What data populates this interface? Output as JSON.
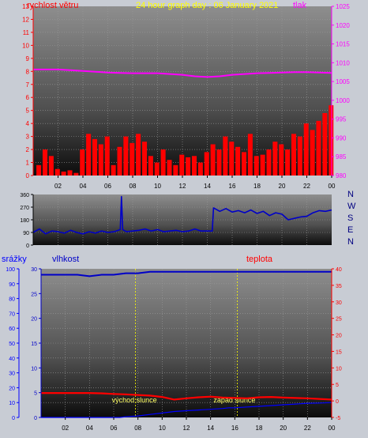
{
  "colors": {
    "background": "#c8ccd4",
    "wind_speed": "#ff0000",
    "pressure": "#ff00ff",
    "direction": "#0000c8",
    "humidity": "#0000c8",
    "temperature": "#ff0000",
    "rain": "#0000ff",
    "title": "#ffff00",
    "annotation": "#ffff66",
    "tick": "#000000"
  },
  "chart_data": [
    {
      "type": "bar",
      "title": "24 hour graph day : 06 January 2021",
      "x_ticks": [
        "02",
        "04",
        "06",
        "08",
        "10",
        "12",
        "14",
        "16",
        "18",
        "20",
        "22",
        "00"
      ],
      "xlim": [
        0,
        24
      ],
      "left_axis": {
        "label": "rychlost větru",
        "ylim": [
          0,
          13
        ],
        "ticks": [
          "0",
          "1",
          "2",
          "3",
          "4",
          "5",
          "6",
          "7",
          "8",
          "9",
          "10",
          "11",
          "12",
          "13"
        ]
      },
      "right_axis": {
        "label": "tlak",
        "ylim": [
          980,
          1025
        ],
        "ticks": [
          "980",
          "985",
          "990",
          "995",
          "1000",
          "1005",
          "1010",
          "1015",
          "1020",
          "1025"
        ]
      },
      "series": [
        {
          "name": "tlak",
          "type": "line",
          "axis": "right",
          "x": [
            0,
            1,
            2,
            3,
            4,
            5,
            6,
            7,
            8,
            9,
            10,
            11,
            12,
            13,
            14,
            15,
            16,
            17,
            18,
            19,
            20,
            21,
            22,
            23,
            24
          ],
          "y": [
            1008.2,
            1008.2,
            1008.2,
            1008.0,
            1007.8,
            1007.6,
            1007.4,
            1007.3,
            1007.2,
            1007.2,
            1007.2,
            1007.0,
            1006.8,
            1006.4,
            1006.2,
            1006.4,
            1006.8,
            1007.0,
            1007.2,
            1007.3,
            1007.4,
            1007.5,
            1007.5,
            1007.4,
            1007.3
          ]
        },
        {
          "name": "rychlost větru",
          "type": "bars",
          "axis": "left",
          "x": [
            0.5,
            1.0,
            1.5,
            2.0,
            2.5,
            3.0,
            3.5,
            4.0,
            4.5,
            5.0,
            5.5,
            6.0,
            6.5,
            7.0,
            7.5,
            8.0,
            8.5,
            9.0,
            9.5,
            10.0,
            10.5,
            11.0,
            11.5,
            12.0,
            12.5,
            13.0,
            13.5,
            14.0,
            14.5,
            15.0,
            15.5,
            16.0,
            16.5,
            17.0,
            17.5,
            18.0,
            18.5,
            19.0,
            19.5,
            20.0,
            20.5,
            21.0,
            21.5,
            22.0,
            22.5,
            23.0,
            23.5,
            24.0
          ],
          "y": [
            0.8,
            2.0,
            1.5,
            0.5,
            0.3,
            0.4,
            0.2,
            2.0,
            3.2,
            2.8,
            2.4,
            3.0,
            0.8,
            2.2,
            3.0,
            2.5,
            3.2,
            2.6,
            1.5,
            1.0,
            2.0,
            1.2,
            0.8,
            1.6,
            1.4,
            1.5,
            1.0,
            1.8,
            2.4,
            2.0,
            3.0,
            2.6,
            2.2,
            1.8,
            3.2,
            1.5,
            1.6,
            2.0,
            2.6,
            2.4,
            2.0,
            3.2,
            3.0,
            4.0,
            3.5,
            4.2,
            4.8,
            5.4
          ]
        }
      ]
    },
    {
      "type": "line",
      "x_ticks": [],
      "xlim": [
        0,
        24
      ],
      "left_axis": {
        "ylim": [
          0,
          360
        ],
        "ticks": [
          "0",
          "90",
          "180",
          "270",
          "360"
        ]
      },
      "compass_labels": [
        "N",
        "W",
        "S",
        "E",
        "N"
      ],
      "series": [
        {
          "name": "",
          "x": [
            0,
            0.5,
            1,
            1.5,
            2,
            2.5,
            3,
            3.5,
            4,
            4.5,
            5,
            5.5,
            6,
            6.5,
            7,
            7.1,
            7.2,
            7.5,
            8,
            8.5,
            9,
            9.5,
            10,
            10.5,
            11,
            11.5,
            12,
            12.5,
            13,
            13.5,
            14,
            14.4,
            14.5,
            15,
            15.5,
            16,
            16.5,
            17,
            17.5,
            18,
            18.5,
            19,
            19.5,
            20,
            20.5,
            21,
            21.5,
            22,
            22.5,
            23,
            23.5,
            24
          ],
          "y": [
            90,
            115,
            80,
            100,
            95,
            85,
            105,
            90,
            80,
            95,
            85,
            100,
            90,
            95,
            110,
            345,
            110,
            95,
            100,
            105,
            115,
            100,
            110,
            95,
            100,
            105,
            95,
            100,
            115,
            100,
            100,
            100,
            265,
            240,
            260,
            235,
            245,
            230,
            250,
            225,
            240,
            210,
            230,
            220,
            180,
            190,
            200,
            205,
            230,
            245,
            240,
            250
          ]
        }
      ]
    },
    {
      "type": "line",
      "x_ticks": [
        "02",
        "04",
        "06",
        "08",
        "10",
        "12",
        "14",
        "16",
        "18",
        "20",
        "22",
        "00"
      ],
      "xlim": [
        0,
        24
      ],
      "left_axis": {
        "label": "srážky",
        "ylim": [
          0,
          100
        ],
        "ticks": [
          "0",
          "10",
          "20",
          "30",
          "40",
          "50",
          "60",
          "70",
          "80",
          "90",
          "100"
        ]
      },
      "second_left_axis": {
        "ylim": [
          0,
          30
        ],
        "ticks": [
          "0",
          "5",
          "10",
          "15",
          "20",
          "25",
          "30"
        ]
      },
      "right_axis": {
        "label": "teplota",
        "ylim": [
          -5,
          40
        ],
        "ticks": [
          "-5",
          "0",
          "5",
          "10",
          "15",
          "20",
          "25",
          "30",
          "35",
          "40"
        ]
      },
      "labels": {
        "humidity": "vlhkost"
      },
      "annotations": [
        {
          "text": "východ slunce",
          "x": 7.8
        },
        {
          "text": "západ slunce",
          "x": 16.2
        }
      ],
      "series": [
        {
          "name": "vlhkost",
          "axis": "left",
          "x": [
            0,
            1,
            2,
            3,
            4,
            5,
            6,
            7,
            8,
            9,
            10,
            11,
            12,
            13,
            14,
            15,
            16,
            17,
            18,
            19,
            20,
            21,
            22,
            23,
            24
          ],
          "y": [
            96,
            96,
            96,
            96,
            95,
            96,
            96,
            97,
            97,
            98,
            98,
            98,
            98,
            98,
            98,
            98,
            98,
            98,
            98,
            98,
            98,
            98,
            98,
            98,
            98
          ]
        },
        {
          "name": "teplota",
          "axis": "right",
          "x": [
            0,
            1,
            2,
            3,
            4,
            5,
            6,
            7,
            8,
            9,
            10,
            11,
            12,
            13,
            14,
            15,
            16,
            17,
            18,
            19,
            20,
            21,
            22,
            23,
            24
          ],
          "y": [
            2.4,
            2.4,
            2.4,
            2.4,
            2.4,
            2.3,
            2.1,
            2.0,
            1.8,
            1.6,
            1.2,
            0.4,
            0.8,
            1.1,
            1.3,
            1.0,
            0.9,
            0.8,
            1.1,
            1.2,
            1.0,
            0.9,
            0.8,
            0.6,
            0.4
          ]
        },
        {
          "name": "srážky",
          "type": "step",
          "axis": "left",
          "x": [
            0,
            6.5,
            7,
            8,
            9,
            10,
            11,
            12,
            13,
            14,
            15,
            15.5,
            16,
            17,
            18,
            19,
            20,
            21,
            22,
            23,
            24
          ],
          "y": [
            0,
            0,
            0.5,
            1,
            2,
            3,
            4,
            4.5,
            5,
            5.5,
            6,
            6.5,
            6.5,
            7,
            7.5,
            8,
            8.5,
            9,
            9.5,
            9.7,
            10
          ]
        }
      ]
    }
  ]
}
